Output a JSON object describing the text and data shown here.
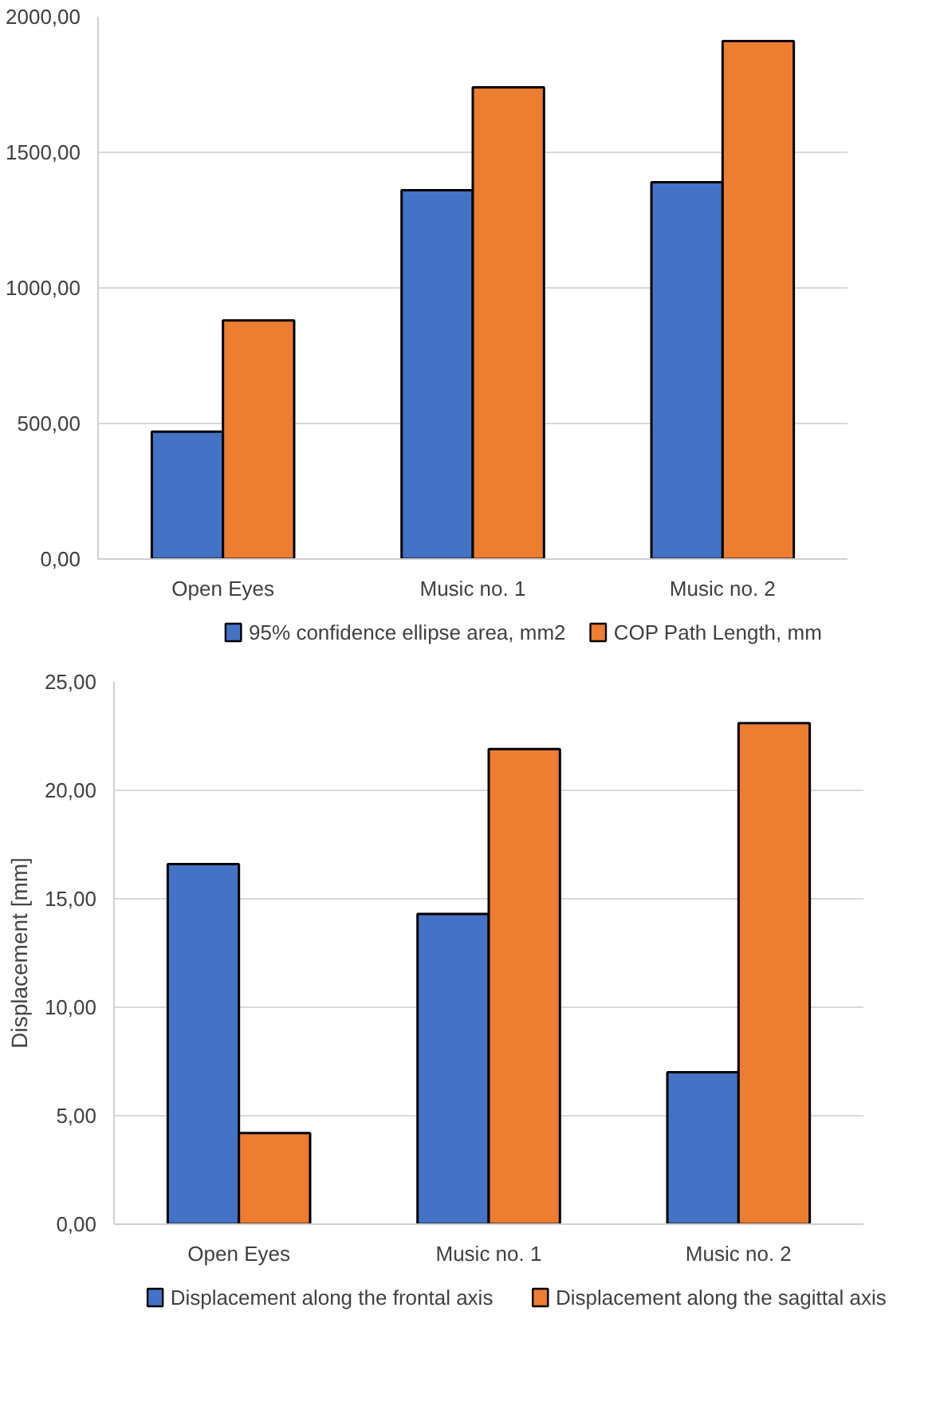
{
  "chart_data": [
    {
      "type": "bar",
      "categories": [
        "Open Eyes",
        "Music no. 1",
        "Music no. 2"
      ],
      "series": [
        {
          "name": "95% confidence ellipse area, mm2",
          "color": "#4472c4",
          "values": [
            470,
            1360,
            1390
          ]
        },
        {
          "name": "COP Path Length, mm",
          "color": "#ed7d31",
          "values": [
            880,
            1740,
            1910
          ]
        }
      ],
      "ylim": [
        0,
        2000
      ],
      "yticks": [
        {
          "value": 0,
          "label": "0,00"
        },
        {
          "value": 500,
          "label": "500,00"
        },
        {
          "value": 1000,
          "label": "1000,00"
        },
        {
          "value": 1500,
          "label": "1500,00"
        },
        {
          "value": 2000,
          "label": "2000,00"
        }
      ],
      "grid": "y",
      "legend": "bottom"
    },
    {
      "type": "bar",
      "ylabel": "Displacement [mm]",
      "categories": [
        "Open Eyes",
        "Music no. 1",
        "Music no. 2"
      ],
      "series": [
        {
          "name": "Displacement along the frontal axis",
          "color": "#4472c4",
          "values": [
            16.6,
            14.3,
            7.0
          ]
        },
        {
          "name": "Displacement along the sagittal axis",
          "color": "#ed7d31",
          "values": [
            4.2,
            21.9,
            23.1
          ]
        }
      ],
      "ylim": [
        0,
        25
      ],
      "yticks": [
        {
          "value": 0,
          "label": "0,00"
        },
        {
          "value": 5,
          "label": "5,00"
        },
        {
          "value": 10,
          "label": "10,00"
        },
        {
          "value": 15,
          "label": "15,00"
        },
        {
          "value": 20,
          "label": "20,00"
        },
        {
          "value": 25,
          "label": "25,00"
        }
      ],
      "grid": "y",
      "legend": "bottom"
    }
  ]
}
